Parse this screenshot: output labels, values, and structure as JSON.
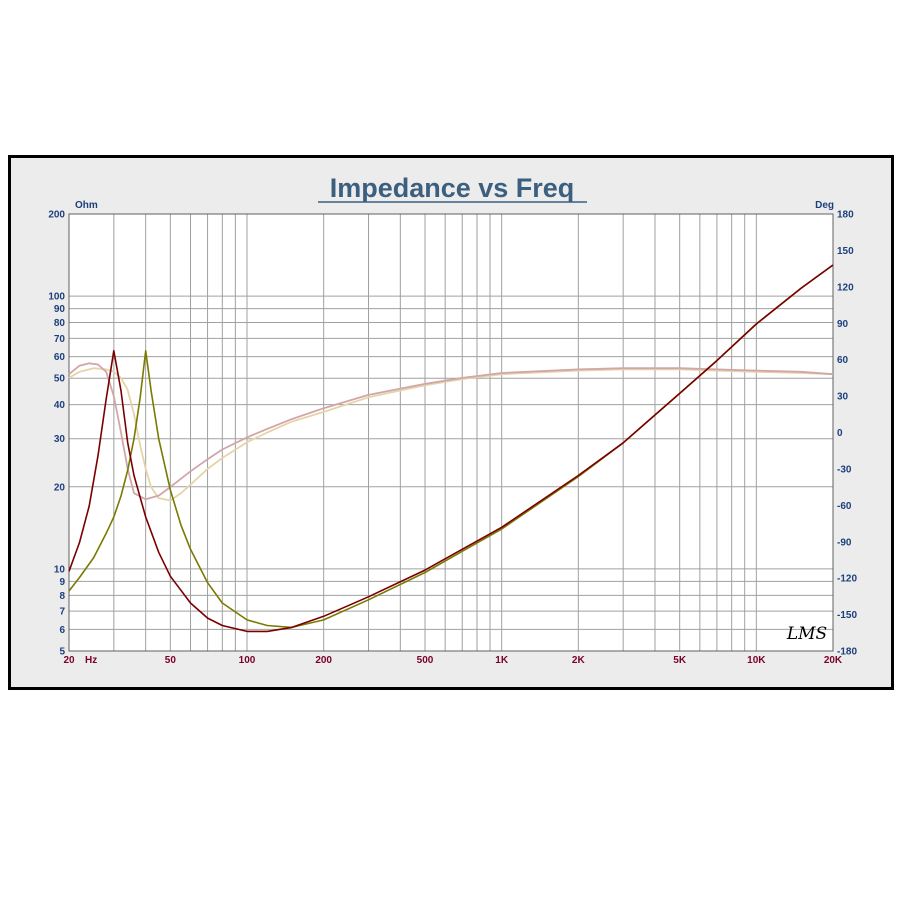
{
  "chart_data": {
    "type": "line",
    "title": "Impedance vs Freq",
    "xlabel_unit": "Hz",
    "y_left_unit": "Ohm",
    "y_right_unit": "Deg",
    "x_scale": "log",
    "y_left_scale": "log",
    "xlim": [
      20,
      20000
    ],
    "ylim_left": [
      5,
      200
    ],
    "ylim_right": [
      -180,
      180
    ],
    "grid": true,
    "x_ticks": [
      {
        "value": 20,
        "label": "20"
      },
      {
        "value": 50,
        "label": "50"
      },
      {
        "value": 100,
        "label": "100"
      },
      {
        "value": 200,
        "label": "200"
      },
      {
        "value": 500,
        "label": "500"
      },
      {
        "value": 1000,
        "label": "1K"
      },
      {
        "value": 2000,
        "label": "2K"
      },
      {
        "value": 5000,
        "label": "5K"
      },
      {
        "value": 10000,
        "label": "10K"
      },
      {
        "value": 20000,
        "label": "20K"
      }
    ],
    "y_left_ticks": [
      {
        "value": 200,
        "label": "200"
      },
      {
        "value": 100,
        "label": "100"
      },
      {
        "value": 90,
        "label": "90"
      },
      {
        "value": 80,
        "label": "80"
      },
      {
        "value": 70,
        "label": "70"
      },
      {
        "value": 60,
        "label": "60"
      },
      {
        "value": 50,
        "label": "50"
      },
      {
        "value": 40,
        "label": "40"
      },
      {
        "value": 30,
        "label": "30"
      },
      {
        "value": 20,
        "label": "20"
      },
      {
        "value": 10,
        "label": "10"
      },
      {
        "value": 9,
        "label": "9"
      },
      {
        "value": 8,
        "label": "8"
      },
      {
        "value": 7,
        "label": "7"
      },
      {
        "value": 6,
        "label": "6"
      },
      {
        "value": 5,
        "label": "5"
      }
    ],
    "y_right_ticks": [
      {
        "value": 180,
        "label": "180"
      },
      {
        "value": 150,
        "label": "150"
      },
      {
        "value": 120,
        "label": "120"
      },
      {
        "value": 90,
        "label": "90"
      },
      {
        "value": 60,
        "label": "60"
      },
      {
        "value": 30,
        "label": "30"
      },
      {
        "value": 0,
        "label": "0"
      },
      {
        "value": -30,
        "label": "-30"
      },
      {
        "value": -60,
        "label": "-60"
      },
      {
        "value": -90,
        "label": "-90"
      },
      {
        "value": -120,
        "label": "-120"
      },
      {
        "value": -150,
        "label": "-150"
      },
      {
        "value": -180,
        "label": "-180"
      }
    ],
    "series": [
      {
        "axis": "left",
        "color": "#7a0000",
        "x": [
          20,
          22,
          24,
          26,
          28,
          30,
          32,
          34,
          36,
          40,
          45,
          50,
          60,
          70,
          80,
          100,
          120,
          150,
          200,
          300,
          500,
          700,
          1000,
          2000,
          3000,
          5000,
          7000,
          10000,
          15000,
          20000
        ],
        "values": [
          9.8,
          12.5,
          17,
          26,
          42,
          63,
          45,
          29,
          22,
          15.5,
          11.5,
          9.4,
          7.5,
          6.6,
          6.2,
          5.9,
          5.9,
          6.1,
          6.7,
          7.9,
          9.9,
          11.8,
          14.2,
          22,
          29,
          44,
          58,
          79,
          107,
          130
        ]
      },
      {
        "axis": "left",
        "color": "#7a7a00",
        "x": [
          20,
          22,
          25,
          28,
          30,
          32,
          34,
          36,
          38,
          40,
          42,
          45,
          50,
          55,
          60,
          70,
          80,
          100,
          120,
          150,
          200,
          300,
          500,
          700,
          1000,
          2000,
          3000,
          5000,
          7000,
          10000,
          15000,
          20000
        ],
        "values": [
          8.3,
          9.3,
          11,
          13.5,
          15.5,
          18.5,
          23,
          30,
          42,
          63,
          45,
          30,
          19.5,
          14.5,
          11.8,
          8.9,
          7.5,
          6.5,
          6.2,
          6.1,
          6.5,
          7.7,
          9.7,
          11.6,
          14,
          21.8,
          29,
          44,
          58,
          79,
          107,
          130
        ]
      },
      {
        "axis": "right",
        "color": "#d2a6a8",
        "x": [
          20,
          22,
          24,
          26,
          28,
          30,
          32,
          34,
          36,
          40,
          45,
          50,
          60,
          70,
          80,
          100,
          120,
          150,
          200,
          300,
          500,
          700,
          1000,
          2000,
          3000,
          5000,
          7000,
          10000,
          15000,
          20000
        ],
        "values": [
          48,
          55,
          57,
          56,
          50,
          30,
          0,
          -30,
          -50,
          -55,
          -52,
          -45,
          -32,
          -22,
          -14,
          -4,
          3,
          11,
          20,
          31,
          40,
          45,
          49,
          52,
          53,
          53,
          52,
          51,
          50,
          48
        ]
      },
      {
        "axis": "right",
        "color": "#e4d4a8",
        "x": [
          20,
          22,
          25,
          28,
          30,
          32,
          34,
          36,
          38,
          40,
          42,
          45,
          50,
          55,
          60,
          70,
          80,
          100,
          120,
          150,
          200,
          300,
          500,
          700,
          1000,
          2000,
          3000,
          5000,
          7000,
          10000,
          15000,
          20000
        ],
        "values": [
          45,
          50,
          53,
          52,
          50,
          45,
          35,
          15,
          -10,
          -30,
          -45,
          -54,
          -56,
          -50,
          -43,
          -30,
          -21,
          -8,
          0,
          9,
          17,
          29,
          39,
          44,
          48,
          51,
          52,
          52,
          51,
          50,
          49,
          48
        ]
      }
    ]
  },
  "watermark": "LMS",
  "colors": {
    "title": "#3b5f7e",
    "left_axis_labels": "#1d3f7c",
    "bottom_axis_labels": "#7a0026",
    "right_axis_labels": "#1d3f7c",
    "grid": "#a0a0a0",
    "plot_background": "#ffffff",
    "frame_background": "#ececec"
  }
}
